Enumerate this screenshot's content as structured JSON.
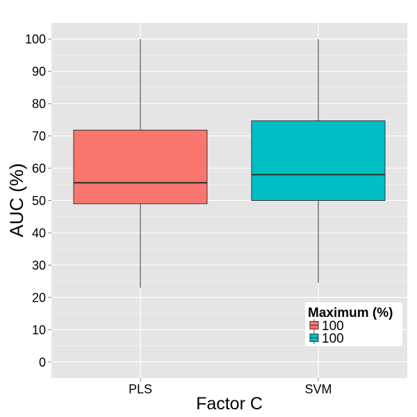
{
  "chart_data": {
    "type": "box",
    "xlabel": "Factor C",
    "ylabel": "AUC (%)",
    "ylim": [
      -5,
      105
    ],
    "yticks": [
      0,
      10,
      20,
      30,
      40,
      50,
      60,
      70,
      80,
      90,
      100
    ],
    "grid": true,
    "panel_background": "#E5E5E5",
    "grid_color": "#FFFFFF",
    "categories": [
      "PLS",
      "SVM"
    ],
    "boxes": [
      {
        "category": "PLS",
        "min": 23,
        "q1": 49,
        "median": 55.5,
        "q3": 71.8,
        "max": 100,
        "fill": "#F8766D"
      },
      {
        "category": "SVM",
        "min": 24.5,
        "q1": 50,
        "median": 58,
        "q3": 74.7,
        "max": 100,
        "fill": "#00BFC4"
      }
    ],
    "legend": {
      "title": "Maximum (%)",
      "position": "bottom-right",
      "items": [
        {
          "label": "100",
          "color": "#F8766D"
        },
        {
          "label": "100",
          "color": "#00BFC4"
        }
      ]
    }
  }
}
